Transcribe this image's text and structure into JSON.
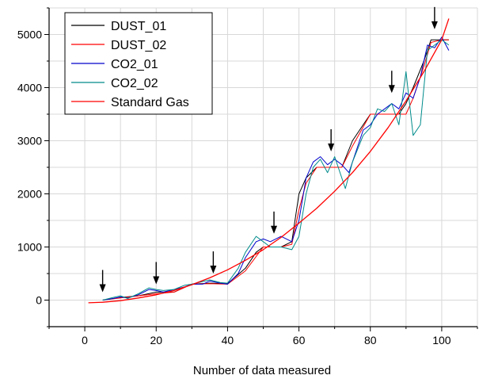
{
  "chart_data": {
    "type": "line",
    "title": "",
    "xlabel": "Number of data measured",
    "ylabel": "",
    "xlim": [
      -10,
      110
    ],
    "ylim": [
      -500,
      5500
    ],
    "x_ticks": [
      0,
      20,
      40,
      60,
      80,
      100
    ],
    "y_ticks": [
      0,
      1000,
      2000,
      3000,
      4000,
      5000
    ],
    "grid": true,
    "legend_position": "top-left",
    "series": [
      {
        "name": "DUST_01",
        "color": "#000000",
        "x": [
          5,
          10,
          15,
          20,
          25,
          30,
          35,
          40,
          45,
          48,
          50,
          55,
          58,
          60,
          62,
          65,
          70,
          72,
          75,
          78,
          80,
          85,
          88,
          90,
          92,
          95,
          97,
          100,
          102
        ],
        "y": [
          0,
          50,
          80,
          150,
          150,
          300,
          320,
          310,
          600,
          900,
          1000,
          1000,
          1100,
          2000,
          2300,
          2500,
          2500,
          2500,
          3000,
          3300,
          3500,
          3500,
          3500,
          3700,
          4000,
          4500,
          4900,
          4900,
          4900
        ]
      },
      {
        "name": "DUST_02",
        "color": "#ff0000",
        "x": [
          5,
          10,
          15,
          20,
          25,
          30,
          35,
          40,
          45,
          50,
          55,
          58,
          60,
          62,
          65,
          70,
          72,
          75,
          80,
          85,
          90,
          92,
          95,
          97,
          100,
          102
        ],
        "y": [
          0,
          40,
          80,
          120,
          150,
          300,
          310,
          300,
          550,
          1000,
          1000,
          1050,
          1700,
          2200,
          2500,
          2500,
          2500,
          2900,
          3500,
          3500,
          3500,
          3800,
          4400,
          4850,
          4900,
          4900
        ]
      },
      {
        "name": "CO2_01",
        "color": "#0000cc",
        "x": [
          5,
          8,
          10,
          12,
          15,
          18,
          20,
          22,
          25,
          28,
          30,
          33,
          35,
          38,
          40,
          43,
          45,
          48,
          50,
          52,
          55,
          58,
          60,
          62,
          64,
          66,
          68,
          70,
          72,
          74,
          76,
          78,
          80,
          82,
          84,
          86,
          88,
          90,
          92,
          94,
          96,
          98,
          100,
          102
        ],
        "y": [
          0,
          30,
          60,
          40,
          100,
          200,
          180,
          150,
          200,
          250,
          300,
          300,
          360,
          320,
          300,
          500,
          800,
          1100,
          1150,
          1100,
          1200,
          1100,
          1500,
          2300,
          2600,
          2700,
          2550,
          2650,
          2550,
          2400,
          2800,
          3200,
          3300,
          3500,
          3600,
          3700,
          3600,
          3900,
          3800,
          4200,
          4800,
          4750,
          4950,
          4700
        ]
      },
      {
        "name": "CO2_02",
        "color": "#008b8b",
        "x": [
          5,
          8,
          10,
          12,
          15,
          18,
          20,
          22,
          25,
          28,
          30,
          33,
          35,
          38,
          40,
          43,
          45,
          48,
          50,
          52,
          55,
          58,
          60,
          62,
          64,
          66,
          68,
          70,
          72,
          73,
          75,
          78,
          80,
          82,
          84,
          86,
          88,
          90,
          92,
          94,
          96,
          98,
          100,
          102
        ],
        "y": [
          0,
          50,
          80,
          30,
          120,
          230,
          200,
          180,
          200,
          280,
          300,
          350,
          380,
          330,
          320,
          600,
          900,
          1200,
          1100,
          1000,
          1000,
          950,
          1200,
          2000,
          2500,
          2650,
          2400,
          2700,
          2300,
          2100,
          2600,
          3100,
          3250,
          3600,
          3550,
          3700,
          3300,
          4300,
          3100,
          3300,
          4700,
          4800,
          4900,
          4800
        ]
      },
      {
        "name": "Standard Gas",
        "color": "#ff0000",
        "x": [
          1,
          5,
          10,
          15,
          20,
          25,
          30,
          35,
          40,
          45,
          50,
          55,
          60,
          65,
          70,
          75,
          80,
          85,
          90,
          95,
          100,
          102
        ],
        "y": [
          -50,
          -40,
          -10,
          40,
          100,
          180,
          290,
          420,
          570,
          750,
          950,
          1180,
          1450,
          1730,
          2050,
          2400,
          2800,
          3250,
          3750,
          4300,
          4900,
          5300
        ]
      }
    ],
    "annotations": [
      {
        "type": "arrow",
        "x": 5,
        "y": 0
      },
      {
        "type": "arrow",
        "x": 20,
        "y": 150
      },
      {
        "type": "arrow",
        "x": 36,
        "y": 350
      },
      {
        "type": "arrow",
        "x": 53,
        "y": 1100
      },
      {
        "type": "arrow",
        "x": 69,
        "y": 2650
      },
      {
        "type": "arrow",
        "x": 86,
        "y": 3750
      },
      {
        "type": "arrow",
        "x": 98,
        "y": 4950
      }
    ]
  }
}
